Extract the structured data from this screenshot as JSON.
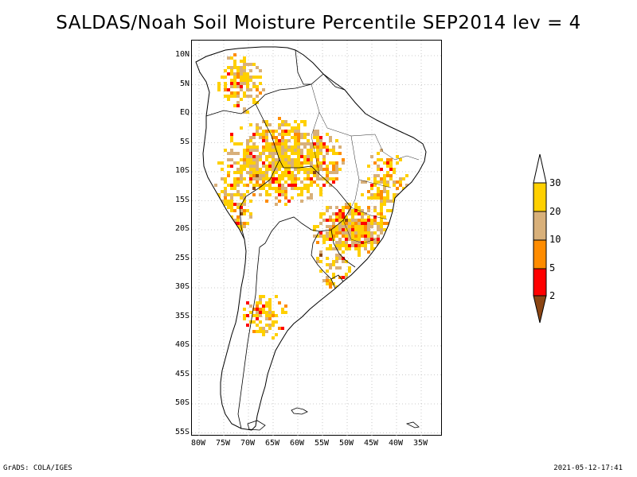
{
  "title": "SALDAS/Noah Soil Moisture Percentile SEP2014 lev = 4",
  "lat_labels": [
    "10N",
    "5N",
    "EQ",
    "5S",
    "10S",
    "15S",
    "20S",
    "25S",
    "30S",
    "35S",
    "40S",
    "45S",
    "50S",
    "55S"
  ],
  "lon_labels": [
    "80W",
    "75W",
    "70W",
    "65W",
    "60W",
    "55W",
    "50W",
    "45W",
    "40W",
    "35W"
  ],
  "colorbar": {
    "labels": [
      "30",
      "20",
      "10",
      "5",
      "2"
    ],
    "colors": {
      "above_30": "#ffffff",
      "20_30": "#ffd000",
      "10_20": "#d8b07a",
      "5_10": "#ff8c00",
      "2_5": "#ff0000",
      "below_2": "#8b4513"
    }
  },
  "footer": {
    "left": "GrADS: COLA/IGES",
    "right": "2021-05-12-17:41"
  }
}
